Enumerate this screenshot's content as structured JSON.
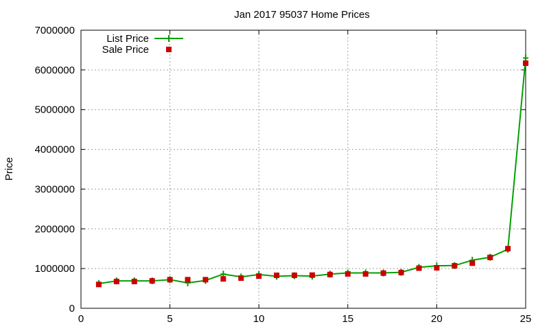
{
  "chart_data": {
    "type": "line",
    "title": "Jan 2017 95037 Home Prices",
    "xlabel": "",
    "ylabel": "Price",
    "xlim": [
      0,
      25
    ],
    "ylim": [
      0,
      7000000
    ],
    "xticks": [
      0,
      5,
      10,
      15,
      20,
      25
    ],
    "yticks": [
      0,
      1000000,
      2000000,
      3000000,
      4000000,
      5000000,
      6000000,
      7000000
    ],
    "grid": true,
    "legend_position": "top-left",
    "x": [
      1,
      2,
      3,
      4,
      5,
      6,
      7,
      8,
      9,
      10,
      11,
      12,
      13,
      14,
      15,
      16,
      17,
      18,
      19,
      20,
      21,
      22,
      23,
      24,
      25
    ],
    "series": [
      {
        "name": "List Price",
        "style": "linespoints",
        "marker": "cross",
        "color": "#00a000",
        "values": [
          620000,
          690000,
          690000,
          690000,
          720000,
          640000,
          700000,
          860000,
          790000,
          850000,
          805000,
          820000,
          810000,
          860000,
          890000,
          890000,
          890000,
          905000,
          1030000,
          1070000,
          1075000,
          1210000,
          1285000,
          1485000,
          6300000
        ]
      },
      {
        "name": "Sale Price",
        "style": "points",
        "marker": "square",
        "color": "#cc0000",
        "values": [
          600000,
          675000,
          675000,
          690000,
          720000,
          720000,
          720000,
          740000,
          760000,
          810000,
          830000,
          830000,
          835000,
          850000,
          865000,
          865000,
          885000,
          900000,
          1010000,
          1020000,
          1070000,
          1135000,
          1280000,
          1500000,
          6170000
        ]
      }
    ]
  }
}
